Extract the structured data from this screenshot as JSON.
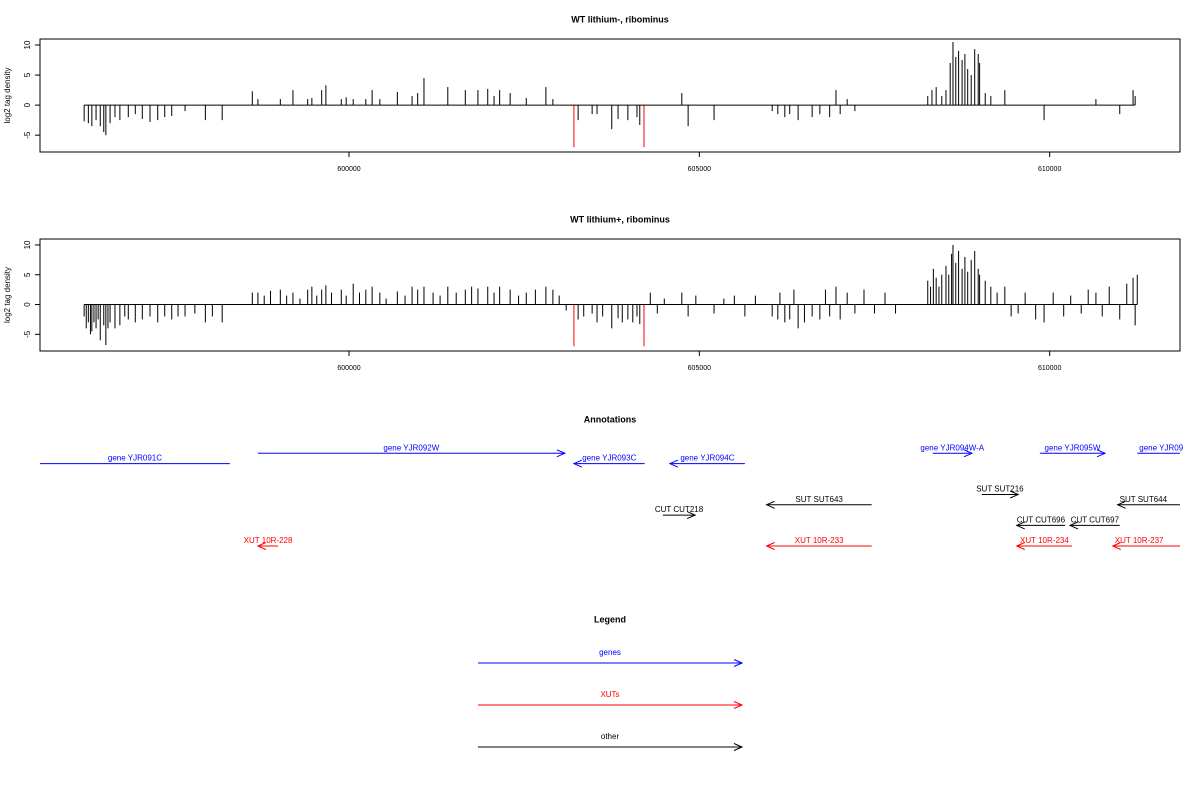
{
  "chart_data": [
    {
      "type": "bar",
      "title": "WT lithium-, ribominus",
      "ylabel": "log2 tag density",
      "xlim": [
        595590,
        611860
      ],
      "ylim": [
        -7.8,
        11
      ],
      "xticks": [
        600000,
        605000,
        610000
      ],
      "yticks": [
        -5,
        0,
        5,
        10
      ],
      "series": [
        {
          "color": "#000000",
          "x": [
            596220,
            596280,
            596330,
            596390,
            596450,
            596500,
            596530,
            596590,
            596660,
            596730,
            596850,
            596950,
            597050,
            597160,
            597270,
            597370,
            597470,
            597660,
            597950,
            598190,
            598620,
            598700,
            599020,
            599200,
            599410,
            599470,
            599610,
            599670,
            599890,
            599960,
            600060,
            600240,
            600330,
            600440,
            600690,
            600900,
            600980,
            601070,
            601410,
            601660,
            601840,
            601980,
            602070,
            602150,
            602300,
            602530,
            602810,
            602910,
            603270,
            603470,
            603540,
            603750,
            603840,
            603980,
            604110,
            604150,
            604750,
            604840,
            605210,
            606040,
            606120,
            606220,
            606290,
            606410,
            606610,
            606720,
            606860,
            606950,
            607010,
            607110,
            607220,
            608260,
            608320,
            608380,
            608460,
            608520,
            608580,
            608620,
            608660,
            608700,
            608750,
            608790,
            608830,
            608880,
            608930,
            608980,
            609000,
            609080,
            609160,
            609360,
            609920,
            610660,
            611000,
            611190,
            611220
          ],
          "values": [
            -2.7,
            -3,
            -3.5,
            -2.5,
            -3.5,
            -4.5,
            -5,
            -3,
            -2,
            -2.5,
            -2,
            -1.5,
            -2.3,
            -2.8,
            -2.5,
            -2,
            -1.8,
            -1,
            -2.5,
            -2.5,
            2.3,
            1,
            1,
            2.5,
            1,
            1.2,
            2.5,
            3.3,
            1,
            1.3,
            1,
            1,
            2.5,
            1,
            2.2,
            1.5,
            2,
            4.5,
            3,
            2.5,
            2.5,
            2.7,
            1.5,
            2.5,
            2,
            1.2,
            3,
            1,
            -2.5,
            -1.5,
            -1.5,
            -4,
            -2.3,
            -2.5,
            -2,
            -3.3,
            2,
            -3.5,
            -2.5,
            -1,
            -1.5,
            -2,
            -1.5,
            -2.5,
            -2,
            -1.5,
            -2,
            2.5,
            -1.5,
            1,
            -1,
            1.5,
            2.5,
            3,
            1.5,
            2.5,
            7,
            10.5,
            8,
            9,
            7.5,
            8.5,
            6,
            5,
            9.3,
            8.5,
            7,
            2,
            1.5,
            2.5,
            -2.5,
            1,
            -1.5,
            2.5,
            1.5
          ]
        },
        {
          "color": "#ff0000",
          "x": [
            603210,
            604210
          ],
          "values": [
            -7,
            -7
          ]
        }
      ]
    },
    {
      "type": "bar",
      "title": "WT lithium+, ribominus",
      "ylabel": "log2 tag density",
      "xlim": [
        595590,
        611860
      ],
      "ylim": [
        -7.8,
        11
      ],
      "xticks": [
        600000,
        605000,
        610000
      ],
      "yticks": [
        -5,
        0,
        5,
        10
      ],
      "series": [
        {
          "color": "#000000",
          "x": [
            596220,
            596250,
            596280,
            596310,
            596330,
            596360,
            596390,
            596420,
            596450,
            596500,
            596530,
            596560,
            596590,
            596660,
            596730,
            596800,
            596850,
            596950,
            597050,
            597160,
            597270,
            597370,
            597470,
            597560,
            597660,
            597800,
            597950,
            598050,
            598190,
            598620,
            598700,
            598790,
            598880,
            599020,
            599110,
            599200,
            599300,
            599410,
            599470,
            599540,
            599610,
            599670,
            599750,
            599890,
            599960,
            600060,
            600150,
            600240,
            600330,
            600440,
            600530,
            600690,
            600800,
            600900,
            600980,
            601070,
            601200,
            601300,
            601410,
            601530,
            601660,
            601750,
            601840,
            601980,
            602070,
            602150,
            602300,
            602420,
            602530,
            602660,
            602810,
            602910,
            603000,
            603100,
            603270,
            603350,
            603470,
            603540,
            603620,
            603750,
            603840,
            603900,
            603980,
            604050,
            604110,
            604150,
            604300,
            604400,
            604500,
            604750,
            604840,
            604950,
            605210,
            605350,
            605500,
            605650,
            605800,
            606040,
            606120,
            606150,
            606220,
            606290,
            606350,
            606410,
            606500,
            606610,
            606720,
            606800,
            606860,
            606950,
            607010,
            607110,
            607220,
            607350,
            607500,
            607650,
            607800,
            608260,
            608300,
            608340,
            608380,
            608420,
            608460,
            608520,
            608560,
            608600,
            608620,
            608660,
            608700,
            608750,
            608790,
            608830,
            608880,
            608930,
            608980,
            609000,
            609080,
            609160,
            609250,
            609360,
            609450,
            609550,
            609650,
            609800,
            609920,
            610050,
            610200,
            610300,
            610450,
            610550,
            610660,
            610750,
            610850,
            611000,
            611100,
            611190,
            611220,
            611250
          ],
          "values": [
            -2,
            -4,
            -3,
            -5,
            -4.5,
            -3,
            -4,
            -2.5,
            -6,
            -3.5,
            -6.8,
            -4,
            -3,
            -4,
            -3.5,
            -2,
            -2.5,
            -3,
            -2.5,
            -2,
            -3,
            -2,
            -2.5,
            -2,
            -2,
            -1.5,
            -3,
            -2,
            -3,
            2,
            2,
            1.5,
            2.3,
            2.5,
            1.5,
            2,
            1,
            2.5,
            3,
            1.5,
            2.5,
            3.2,
            2,
            2.5,
            1.5,
            3.5,
            2,
            2.5,
            3,
            2,
            1,
            2.2,
            1.5,
            3,
            2.5,
            3,
            2,
            1.5,
            3,
            2,
            2.5,
            3,
            2.7,
            3,
            2,
            3,
            2.5,
            1.5,
            2,
            2.5,
            3,
            2.5,
            1.5,
            -1,
            -2.5,
            -2,
            -1.5,
            -3,
            -2,
            -4,
            -2.3,
            -3,
            -2.5,
            -3,
            -2,
            -3.3,
            2,
            -1.5,
            1,
            2,
            -2,
            1.5,
            -1.5,
            1,
            1.5,
            -2,
            1.5,
            -2,
            -2.5,
            2,
            -3,
            -2.5,
            2.5,
            -4,
            -3,
            -2,
            -2.5,
            2.5,
            -2,
            3,
            -2.5,
            2,
            -1.5,
            2.5,
            -1.5,
            2,
            -1.5,
            4,
            3,
            6,
            4.5,
            3,
            5,
            6.5,
            5,
            8.5,
            10,
            7,
            9,
            6,
            8,
            5.5,
            7.5,
            9,
            6,
            5,
            4,
            3,
            2,
            3,
            -2,
            -1.5,
            2,
            -2.5,
            -3,
            2,
            -2,
            1.5,
            -1.5,
            2.5,
            2,
            -2,
            3,
            -2.5,
            3.5,
            4.5,
            -3.5,
            5
          ]
        },
        {
          "color": "#ff0000",
          "x": [
            603210,
            604210
          ],
          "values": [
            -7,
            -7
          ]
        }
      ]
    }
  ],
  "annotations": {
    "title": "Annotations",
    "xlim": [
      595590,
      611860
    ],
    "features": [
      {
        "label": "gene YJR091C",
        "start": 595590,
        "end": 598300,
        "strand": "-",
        "row": 2,
        "color": "#0000ff"
      },
      {
        "label": "gene YJR092W",
        "start": 598700,
        "end": 603080,
        "strand": "+",
        "row": 1,
        "color": "#0000ff"
      },
      {
        "label": "gene YJR093C",
        "start": 603210,
        "end": 604220,
        "strand": "-",
        "row": 2,
        "color": "#0000ff"
      },
      {
        "label": "gene YJR094C",
        "start": 604580,
        "end": 605650,
        "strand": "-",
        "row": 2,
        "color": "#0000ff"
      },
      {
        "label": "gene YJR094W-A",
        "start": 608330,
        "end": 608890,
        "strand": "+",
        "row": 1,
        "color": "#0000ff"
      },
      {
        "label": "gene YJR095W",
        "start": 609860,
        "end": 610790,
        "strand": "+",
        "row": 1,
        "color": "#0000ff"
      },
      {
        "label": "gene YJR09",
        "start": 611250,
        "end": 611860,
        "strand": "+",
        "row": 1,
        "color": "#0000ff"
      },
      {
        "label": "SUT SUT643",
        "start": 605960,
        "end": 607460,
        "strand": "-",
        "row": 6,
        "color": "#000000"
      },
      {
        "label": "SUT SUT216",
        "start": 609030,
        "end": 609550,
        "strand": "+",
        "row": 5,
        "color": "#000000"
      },
      {
        "label": "SUT SUT644",
        "start": 610970,
        "end": 611860,
        "strand": "-",
        "row": 6,
        "color": "#000000"
      },
      {
        "label": "CUT CUT218",
        "start": 604480,
        "end": 604940,
        "strand": "+",
        "row": 7,
        "color": "#000000"
      },
      {
        "label": "CUT CUT696",
        "start": 609530,
        "end": 610220,
        "strand": "-",
        "row": 8,
        "color": "#000000"
      },
      {
        "label": "CUT CUT697",
        "start": 610290,
        "end": 611000,
        "strand": "-",
        "row": 8,
        "color": "#000000"
      },
      {
        "label": "XUT 10R-228",
        "start": 598700,
        "end": 598990,
        "strand": "-",
        "row": 10,
        "color": "#ff0000"
      },
      {
        "label": "XUT 10R-233",
        "start": 605960,
        "end": 607460,
        "strand": "-",
        "row": 10,
        "color": "#ff0000"
      },
      {
        "label": "XUT 10R-234",
        "start": 609530,
        "end": 610320,
        "strand": "-",
        "row": 10,
        "color": "#ff0000"
      },
      {
        "label": "XUT 10R-237",
        "start": 610900,
        "end": 611860,
        "strand": "-",
        "row": 10,
        "color": "#ff0000"
      }
    ]
  },
  "legend": {
    "title": "Legend",
    "items": [
      {
        "label": "genes",
        "color": "#0000ff"
      },
      {
        "label": "XUTs",
        "color": "#ff0000"
      },
      {
        "label": "other",
        "color": "#000000"
      }
    ]
  }
}
